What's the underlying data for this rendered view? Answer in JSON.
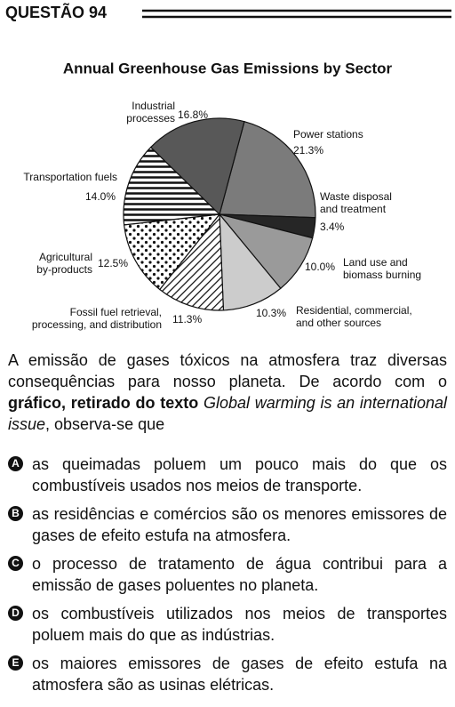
{
  "header": {
    "title": "QUESTÃO 94"
  },
  "chart_data": {
    "type": "pie",
    "title": "Annual Greenhouse Gas Emissions by Sector",
    "categories": [
      "Power stations",
      "Waste disposal\nand treatment",
      "Land use and\nbiomass burning",
      "Residential, commercial,\nand other sources",
      "Fossil fuel retrieval,\nprocessing, and distribution",
      "Agricultural\nby-products",
      "Transportation fuels",
      "Industrial\nprocesses"
    ],
    "values": [
      21.3,
      3.4,
      10.0,
      10.3,
      11.3,
      12.5,
      14.0,
      16.8
    ],
    "value_labels": [
      "21.3%",
      "3.4%",
      "10.0%",
      "10.3%",
      "11.3%",
      "12.5%",
      "14.0%",
      "16.8%"
    ],
    "colors": [
      "#7b7b7b",
      "#262626",
      "#9a9a9a",
      "#cccccc",
      "#ffffff",
      "#ffffff",
      "#ffffff",
      "#585858"
    ],
    "patterns": [
      null,
      null,
      null,
      null,
      "diagonal",
      "dots",
      "horizontal",
      null
    ]
  },
  "question": {
    "parts": [
      {
        "text": "A emissão de gases tóxicos na atmosfera traz diversas consequências para nosso planeta. De acordo com o ",
        "style": "normal"
      },
      {
        "text": "gráfico, retirado do texto ",
        "style": "bold"
      },
      {
        "text": "Global warming is an international issue",
        "style": "italic"
      },
      {
        "text": ", observa-se que",
        "style": "normal"
      }
    ]
  },
  "options": [
    {
      "letter": "A",
      "text": "as queimadas poluem um pouco mais do que os combustíveis usados nos meios de transporte."
    },
    {
      "letter": "B",
      "text": "as residências e comércios são os menores emissores de gases de efeito estufa na atmosfera."
    },
    {
      "letter": "C",
      "text": "o processo de tratamento de água contribui para a emissão de gases poluentes no planeta."
    },
    {
      "letter": "D",
      "text": "os combustíveis utilizados nos meios de transportes poluem mais do que as indústrias."
    },
    {
      "letter": "E",
      "text": "os maiores emissores de gases de efeito estufa na atmosfera são as usinas elétricas."
    }
  ]
}
